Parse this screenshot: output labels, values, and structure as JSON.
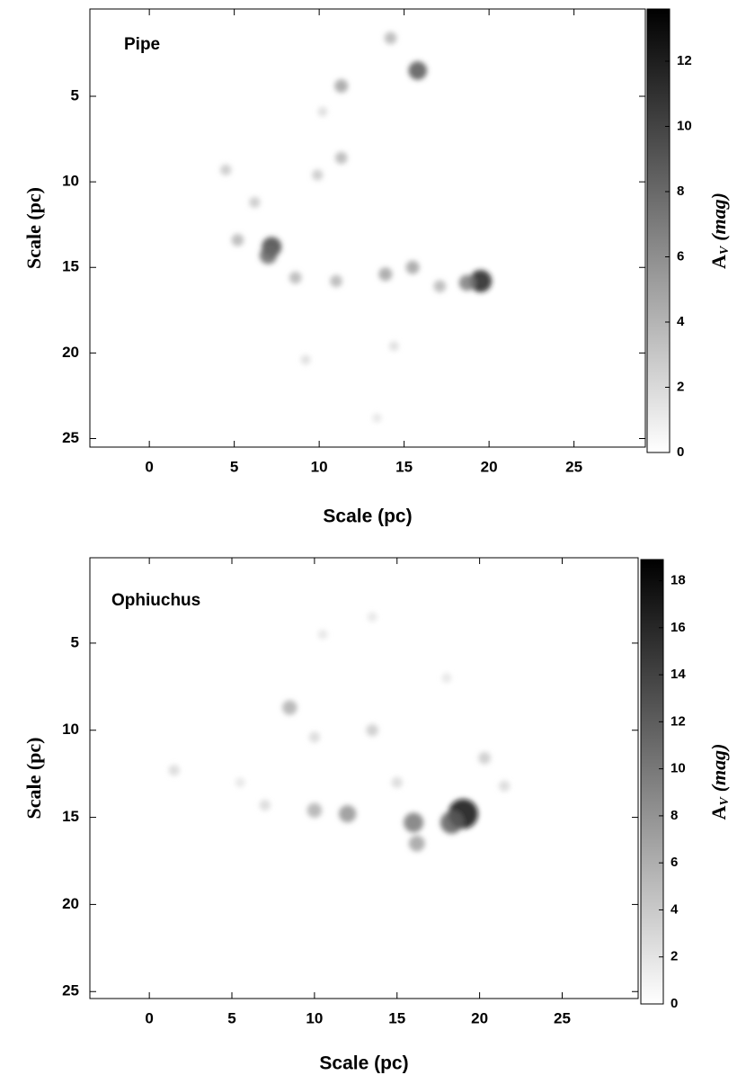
{
  "chart_data": [
    {
      "type": "heatmap",
      "annotation": "Pipe",
      "xlabel": "Scale (pc)",
      "ylabel": "Scale (pc)",
      "colorbar_label": {
        "main": "A",
        "sub": "V",
        "unit": "(mag)"
      },
      "xlim": [
        -3.5,
        29.2
      ],
      "xticks": [
        0,
        5,
        10,
        15,
        20,
        25
      ],
      "ylim": [
        -0.1,
        25.5
      ],
      "yticks": [
        5,
        10,
        15,
        20,
        25
      ],
      "y_inverted": true,
      "clim": [
        0,
        13.6
      ],
      "cticks": [
        0,
        2,
        4,
        6,
        8,
        10,
        12
      ],
      "colormap": [
        "#ffffff",
        "#000000"
      ],
      "x": [
        19.5,
        18.7,
        7.2,
        7.0,
        15.8,
        11.3,
        14.2,
        5.2,
        8.6,
        11.0,
        13.9,
        15.5,
        17.1,
        4.5,
        6.2,
        9.9,
        11.3,
        10.2,
        9.2,
        14.4,
        13.4
      ],
      "y": [
        15.8,
        15.9,
        13.8,
        14.3,
        3.5,
        4.4,
        1.6,
        13.4,
        15.6,
        15.8,
        15.4,
        15.0,
        16.1,
        9.3,
        11.2,
        9.6,
        8.6,
        5.9,
        20.4,
        19.6,
        23.8
      ],
      "values": [
        12,
        7,
        10,
        8,
        9,
        5,
        4,
        4,
        4,
        4,
        5,
        5,
        4,
        3,
        3,
        3,
        4,
        2,
        2,
        2,
        1.5
      ]
    },
    {
      "type": "heatmap",
      "annotation": "Ophiuchus",
      "xlabel": "Scale (pc)",
      "ylabel": "Scale (pc)",
      "colorbar_label": {
        "main": "A",
        "sub": "V",
        "unit": "(mag)"
      },
      "xlim": [
        -3.6,
        29.6
      ],
      "xticks": [
        0,
        5,
        10,
        15,
        20,
        25
      ],
      "ylim": [
        0.1,
        25.4
      ],
      "yticks": [
        5,
        10,
        15,
        20,
        25
      ],
      "y_inverted": true,
      "clim": [
        0,
        18.9
      ],
      "cticks": [
        0,
        2,
        4,
        6,
        8,
        10,
        12,
        14,
        16,
        18
      ],
      "colormap": [
        "#ffffff",
        "#000000"
      ],
      "x": [
        19,
        18.3,
        16,
        16.2,
        12,
        10,
        7,
        8.5,
        10,
        13.5,
        20.3,
        21.5,
        1.5,
        5.5,
        10.5,
        13.5,
        18,
        15
      ],
      "y": [
        14.8,
        15.3,
        15.3,
        16.5,
        14.8,
        14.6,
        14.3,
        8.7,
        10.4,
        10,
        11.6,
        13.2,
        12.3,
        13,
        4.5,
        3.5,
        7,
        13
      ],
      "values": [
        18,
        12,
        10,
        7,
        8,
        6,
        3,
        6,
        3,
        4,
        4,
        3,
        3,
        2,
        2,
        2,
        2,
        3
      ]
    }
  ]
}
